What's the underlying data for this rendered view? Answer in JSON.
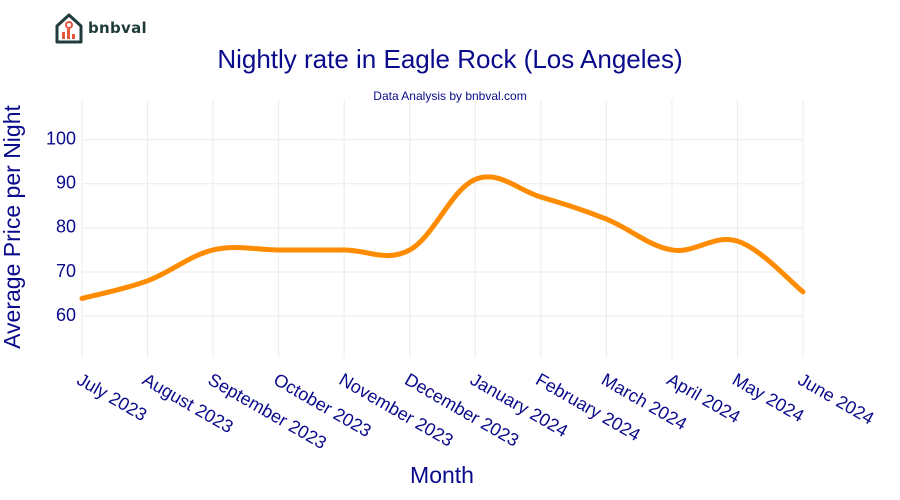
{
  "brand": {
    "name": "bnbval",
    "logo_icon": "house-chart-icon",
    "color": "#1f3b3a",
    "accent": "#e8553d"
  },
  "chart_data": {
    "type": "line",
    "title": "Nightly rate in Eagle Rock (Los Angeles)",
    "subtitle": "Data Analysis by bnbval.com",
    "xlabel": "Month",
    "ylabel": "Average Price per Night",
    "categories": [
      "July 2023",
      "August 2023",
      "September 2023",
      "October 2023",
      "November 2023",
      "December 2023",
      "January 2024",
      "February 2024",
      "March 2024",
      "April 2024",
      "May 2024",
      "June 2024"
    ],
    "series": [
      {
        "values": [
          64,
          68,
          75,
          75,
          75,
          75,
          91,
          87,
          82,
          75,
          77,
          65.5
        ],
        "color": "#ff8c00"
      }
    ],
    "yticks": [
      60,
      70,
      80,
      90,
      100
    ],
    "ylim": [
      50.5,
      109
    ],
    "grid": true,
    "line_shape": "spline",
    "text_color": "#0a0a8c",
    "grid_color": "#ebebeb"
  }
}
